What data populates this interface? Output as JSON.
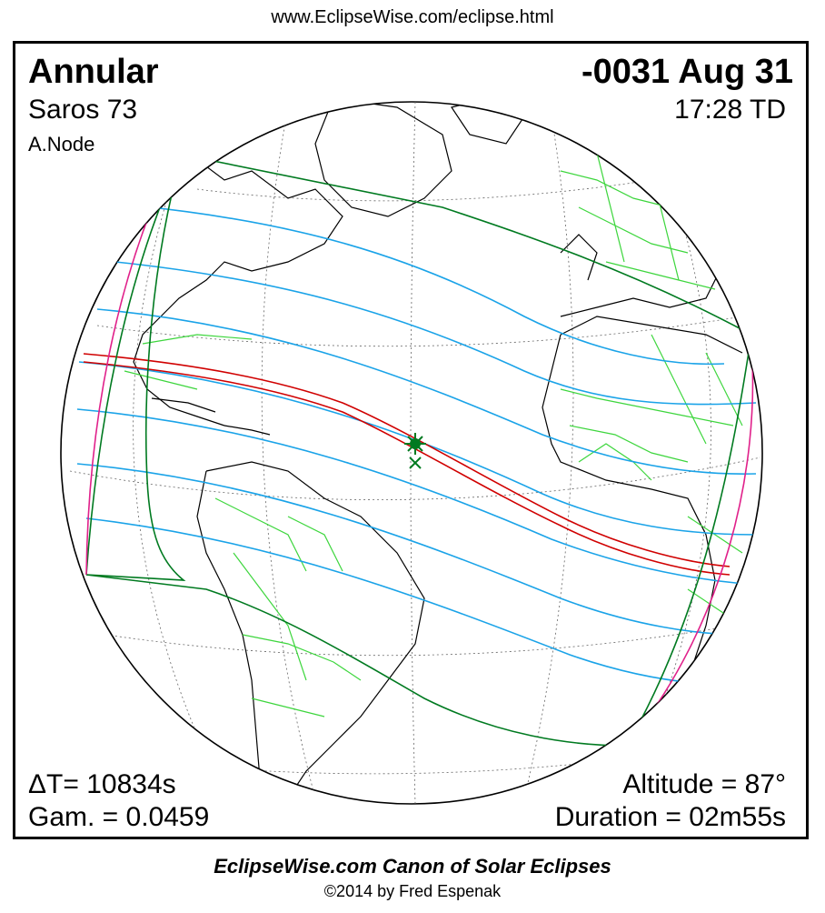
{
  "url": "www.EclipseWise.com/eclipse.html",
  "eclipse": {
    "type": "Annular",
    "date": "-0031 Aug 31",
    "saros": "Saros  73",
    "time": "17:28 TD",
    "node": "A.Node",
    "delta_t": "ΔT=  10834s",
    "gamma": "Gam. = 0.0459",
    "altitude": "Altitude = 87°",
    "duration": "Duration = 02m55s"
  },
  "footer": {
    "title": "EclipseWise.com Canon of Solar Eclipses",
    "copyright": "©2014 by Fred Espenak"
  },
  "colors": {
    "central_path": "#d00000",
    "penumbral_limits": "#007a20",
    "time_lines": "#1aa3e8",
    "rise_set_curves": "#e0208a",
    "borders": "#3dd63d",
    "coastlines": "#000000",
    "greatest_eclipse_marker": "#007a20"
  }
}
